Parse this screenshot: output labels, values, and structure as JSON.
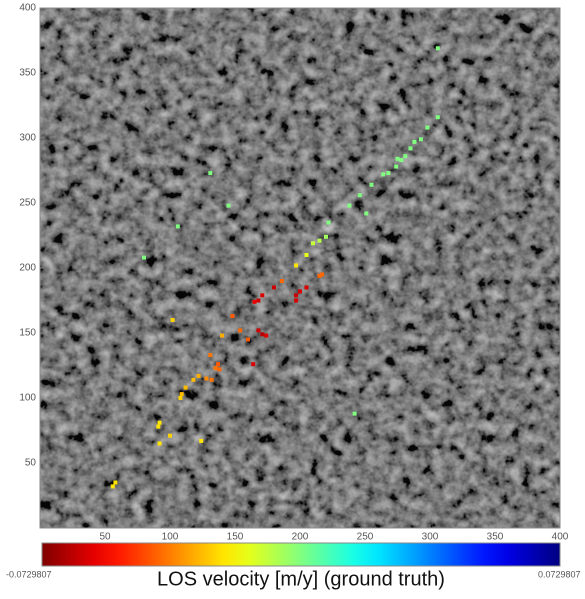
{
  "chart_data": {
    "type": "scatter",
    "title": "LOS velocity [m/y] (ground truth)",
    "xlim": [
      0,
      400
    ],
    "ylim": [
      0,
      400
    ],
    "xticks": [
      50,
      100,
      150,
      200,
      250,
      300,
      350,
      400
    ],
    "yticks": [
      50,
      100,
      150,
      200,
      250,
      300,
      350,
      400
    ],
    "clim": [
      -0.0729807,
      0.0729807
    ],
    "colormap": "jet_r",
    "x": [
      306,
      306,
      298,
      293,
      288,
      285,
      281,
      275,
      274,
      278,
      268,
      264,
      255,
      246,
      238,
      251,
      222,
      220,
      215,
      210,
      205,
      131,
      145,
      106,
      80,
      242,
      197,
      217,
      215,
      186,
      102,
      148,
      154,
      160,
      140,
      131,
      137,
      135,
      138,
      122,
      118,
      128,
      132,
      112,
      109,
      108,
      92,
      91,
      100,
      92,
      124,
      58,
      56,
      180,
      171,
      168,
      165,
      200,
      205,
      197,
      197,
      168,
      171,
      174,
      164
    ],
    "values": [
      369,
      316,
      308,
      299,
      297,
      292,
      286,
      284,
      278,
      283,
      273,
      272,
      264,
      256,
      248,
      242,
      235,
      224,
      221,
      219,
      210,
      273,
      248,
      232,
      208,
      88,
      202,
      195,
      194,
      190,
      160,
      163,
      152,
      145,
      148,
      133,
      126,
      123,
      122,
      117,
      114,
      115,
      114,
      108,
      103,
      100,
      81,
      78,
      71,
      65,
      67,
      35,
      32,
      185,
      179,
      175,
      174,
      182,
      185,
      179,
      175,
      152,
      149,
      148,
      126
    ],
    "velocity": [
      0,
      0,
      0,
      0,
      0,
      0,
      0,
      0,
      0,
      0,
      0,
      0,
      0,
      0,
      0,
      0,
      0,
      -0.005,
      -0.008,
      -0.01,
      -0.015,
      0,
      0,
      0,
      0,
      0,
      -0.022,
      -0.04,
      -0.04,
      -0.04,
      -0.025,
      -0.042,
      -0.04,
      -0.042,
      -0.03,
      -0.038,
      -0.042,
      -0.038,
      -0.04,
      -0.03,
      -0.028,
      -0.035,
      -0.038,
      -0.028,
      -0.028,
      -0.025,
      -0.022,
      -0.022,
      -0.025,
      -0.022,
      -0.022,
      -0.022,
      -0.022,
      -0.062,
      -0.06,
      -0.062,
      -0.058,
      -0.06,
      -0.06,
      -0.062,
      -0.06,
      -0.062,
      -0.065,
      -0.06,
      -0.06
    ]
  }
}
